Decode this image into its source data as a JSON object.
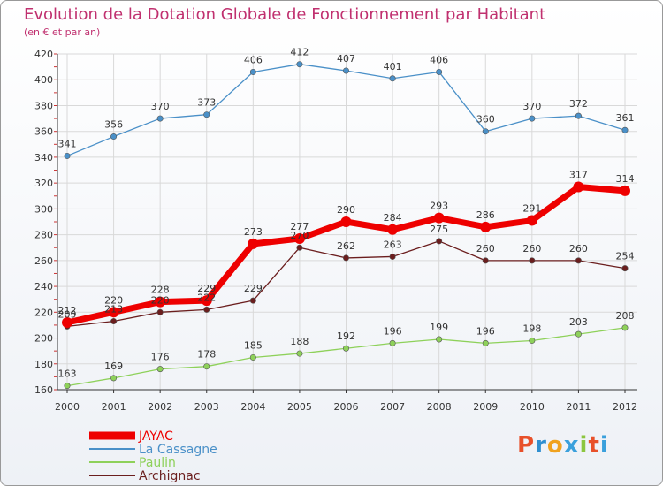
{
  "title": "Evolution de la Dotation Globale de Fonctionnement par Habitant",
  "subtitle": "(en € et par an)",
  "logo": {
    "text": "Proxiti",
    "colors": [
      "#e8502a",
      "#2f8fd0",
      "#f0a21e",
      "#3aa0dc",
      "#8cc63f",
      "#e8502a",
      "#3aa0dc"
    ]
  },
  "chart_data": {
    "type": "line",
    "title": "Evolution de la Dotation Globale de Fonctionnement par Habitant",
    "subtitle": "(en € et par an)",
    "xlabel": "",
    "ylabel": "",
    "x": [
      "2000",
      "2001",
      "2002",
      "2003",
      "2004",
      "2005",
      "2006",
      "2007",
      "2008",
      "2009",
      "2010",
      "2011",
      "2012"
    ],
    "ylim": [
      160,
      420
    ],
    "yticks": [
      160,
      180,
      200,
      220,
      240,
      260,
      280,
      300,
      320,
      340,
      360,
      380,
      400,
      420
    ],
    "grid": true,
    "legend": "bottom-left",
    "series": [
      {
        "name": "JAYAC",
        "color": "#ee0000",
        "values": [
          212,
          220,
          228,
          229,
          273,
          277,
          290,
          284,
          293,
          286,
          291,
          317,
          314
        ]
      },
      {
        "name": "La Cassagne",
        "color": "#4a90c8",
        "values": [
          341,
          356,
          370,
          373,
          406,
          412,
          407,
          401,
          406,
          360,
          370,
          372,
          361
        ]
      },
      {
        "name": "Paulin",
        "color": "#8ed15a",
        "values": [
          163,
          169,
          176,
          178,
          185,
          188,
          192,
          196,
          199,
          196,
          198,
          203,
          208
        ]
      },
      {
        "name": "Archignac",
        "color": "#6b1e1e",
        "values": [
          209,
          213,
          220,
          222,
          229,
          270,
          262,
          263,
          275,
          260,
          260,
          260,
          254
        ]
      }
    ]
  }
}
